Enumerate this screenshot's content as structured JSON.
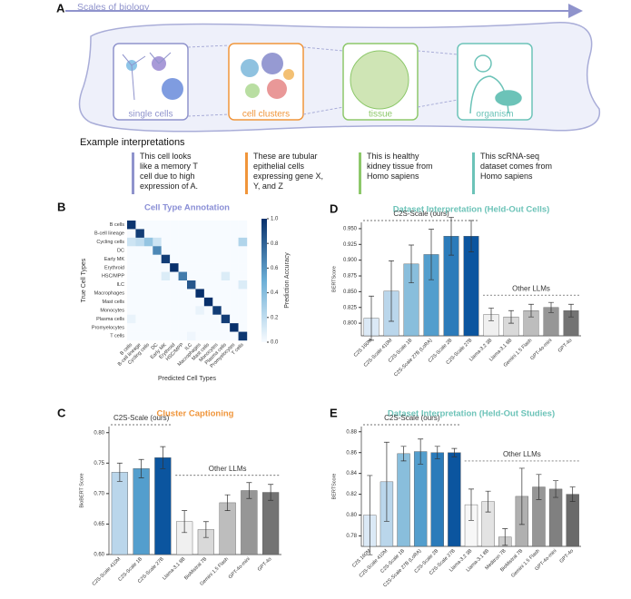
{
  "panel_a": {
    "letter": "A",
    "arrow_label": "Scales of biology",
    "scales": [
      "single cells",
      "cell clusters",
      "tissue",
      "organism"
    ],
    "examples_title": "Example interpretations",
    "examples": [
      "This cell looks like a memory T cell due to high expression of A.",
      "These are tubular epithelial cells expressing gene X, Y, and Z",
      "This is healthy kidney tissue from Homo sapiens",
      "This scRNA-seq dataset comes from Homo sapiens"
    ]
  },
  "chart_data": [
    {
      "type": "heatmap",
      "panel": "B",
      "title": "Cell Type Annotation",
      "title_color": "#8a8fd6",
      "categories": [
        "B cells",
        "B-cell lineage",
        "Cycling cells",
        "DC",
        "Early MK",
        "Erythroid",
        "HSC/MPP",
        "ILC",
        "Macrophages",
        "Mast cells",
        "Monocytes",
        "Plasma cells",
        "Promyelocytes",
        "T cells"
      ],
      "values": [
        [
          0.98,
          0,
          0,
          0,
          0,
          0,
          0,
          0,
          0,
          0,
          0,
          0,
          0,
          0
        ],
        [
          0,
          0.95,
          0,
          0,
          0,
          0,
          0,
          0,
          0,
          0,
          0,
          0,
          0,
          0
        ],
        [
          0.15,
          0.2,
          0.35,
          0.15,
          0,
          0,
          0,
          0,
          0,
          0,
          0,
          0,
          0,
          0.25
        ],
        [
          0,
          0,
          0,
          0.65,
          0,
          0,
          0,
          0,
          0,
          0,
          0,
          0,
          0,
          0
        ],
        [
          0,
          0,
          0,
          0,
          0.95,
          0,
          0,
          0,
          0,
          0,
          0,
          0,
          0,
          0
        ],
        [
          0,
          0,
          0,
          0,
          0,
          1.0,
          0,
          0,
          0,
          0,
          0,
          0,
          0,
          0
        ],
        [
          0,
          0,
          0,
          0,
          0.1,
          0,
          0.7,
          0,
          0,
          0,
          0,
          0.1,
          0,
          0
        ],
        [
          0,
          0,
          0,
          0,
          0,
          0,
          0,
          0.85,
          0,
          0,
          0,
          0,
          0,
          0.1
        ],
        [
          0,
          0,
          0,
          0,
          0,
          0,
          0,
          0,
          1.0,
          0,
          0,
          0,
          0,
          0
        ],
        [
          0,
          0,
          0,
          0,
          0,
          0,
          0,
          0,
          0,
          1.0,
          0,
          0,
          0,
          0
        ],
        [
          0,
          0,
          0,
          0,
          0,
          0,
          0,
          0,
          0.05,
          0,
          0.95,
          0,
          0,
          0
        ],
        [
          0.05,
          0,
          0,
          0,
          0,
          0,
          0,
          0,
          0,
          0,
          0,
          0.95,
          0,
          0
        ],
        [
          0,
          0,
          0,
          0,
          0,
          0,
          0,
          0,
          0,
          0,
          0,
          0,
          1.0,
          0
        ],
        [
          0,
          0,
          0,
          0,
          0,
          0,
          0,
          0.03,
          0,
          0,
          0,
          0,
          0,
          0.97
        ]
      ],
      "x_label": "Predicted Cell Types",
      "y_label": "True Cell Types",
      "colorbar_label": "Prediction Accuracy",
      "clim": [
        0,
        1
      ],
      "cticks": [
        {
          "value": 0,
          "label": "0.0"
        },
        0.2,
        0.4,
        0.6,
        0.8,
        {
          "value": 1,
          "label": "1.0"
        }
      ]
    },
    {
      "type": "bar",
      "panel": "D",
      "title": "Dataset Interpretation (Held-Out Cells)",
      "title_color": "#6cc3b8",
      "categories": [
        "C2S 160M",
        "C2S-Scale 410M",
        "C2S-Scale 1B",
        "C2S-Scale 27B (LoRA)",
        "C2S-Scale 2B",
        "C2S-Scale 27B",
        "Llama-3.2 3B",
        "Llama-3.1 8B",
        "Gemini 1.5 Flash",
        "GPT-4o-mini",
        "GPT-4o"
      ],
      "values": [
        0.808,
        0.851,
        0.894,
        0.909,
        0.938,
        0.938,
        0.814,
        0.81,
        0.82,
        0.825,
        0.82
      ],
      "errors": [
        0.035,
        0.048,
        0.03,
        0.04,
        0.03,
        0.025,
        0.01,
        0.01,
        0.01,
        0.008,
        0.01
      ],
      "colors": [
        "#dbe9f6",
        "#bad6eb",
        "#89bedc",
        "#539ecd",
        "#2b7bba",
        "#0b559f",
        "#f0f0f0",
        "#d9d9d9",
        "#bdbdbd",
        "#969696",
        "#737373"
      ],
      "groups": [
        "C2S-Scale (ours)",
        "Other LLMs"
      ],
      "y_label": "BERTScore",
      "ylim": [
        0.78,
        0.96
      ],
      "yticks": [
        {
          "value": 0.8,
          "label": "0.800"
        },
        0.825,
        {
          "value": 0.85,
          "label": "0.850"
        },
        0.875,
        {
          "value": 0.9,
          "label": "0.900"
        },
        0.925,
        {
          "value": 0.95,
          "label": "0.950"
        }
      ]
    },
    {
      "type": "bar",
      "panel": "C",
      "title": "Cluster Captioning",
      "title_color": "#f0953a",
      "categories": [
        "C2S-Scale 410M",
        "C2S-Scale 1B",
        "C2S-Scale 27B",
        "Llama-3.1 8B",
        "BioMistral 7B",
        "Gemini 1.5 Flash",
        "GPT-4o-mini",
        "GPT-4o"
      ],
      "values": [
        0.735,
        0.741,
        0.759,
        0.654,
        0.641,
        0.685,
        0.705,
        0.702
      ],
      "errors": [
        0.015,
        0.015,
        0.018,
        0.018,
        0.013,
        0.013,
        0.013,
        0.013
      ],
      "colors": [
        "#bad6eb",
        "#539ecd",
        "#0b559f",
        "#f0f0f0",
        "#d9d9d9",
        "#bdbdbd",
        "#969696",
        "#737373"
      ],
      "groups": [
        "C2S-Scale (ours)",
        "Other LLMs"
      ],
      "y_label": "BioBERT Score",
      "ylim": [
        0.6,
        0.81
      ],
      "yticks": [
        {
          "value": 0.6,
          "label": "0.60"
        },
        0.65,
        {
          "value": 0.7,
          "label": "0.70"
        },
        0.75,
        {
          "value": 0.8,
          "label": "0.80"
        }
      ]
    },
    {
      "type": "bar",
      "panel": "E",
      "title": "Dataset Interpretation (Held-Out Studies)",
      "title_color": "#6cc3b8",
      "categories": [
        "C2S 160M",
        "C2S-Scale 410M",
        "C2S-Scale 1B",
        "C2S-Scale 27B (LoRA)",
        "C2S-Scale 2B",
        "C2S-Scale 27B",
        "Llama-3.2 3B",
        "Llama-3.1 8B",
        "Meditron 7B",
        "BioMistral 7B",
        "Gemini 1.5 Flash",
        "GPT-4o-mini",
        "GPT-4o"
      ],
      "values": [
        0.8,
        0.832,
        0.859,
        0.861,
        0.86,
        0.86,
        0.81,
        0.813,
        0.779,
        0.818,
        0.827,
        0.825,
        0.82
      ],
      "errors": [
        0.038,
        0.038,
        0.007,
        0.012,
        0.006,
        0.004,
        0.015,
        0.01,
        0.008,
        0.027,
        0.012,
        0.008,
        0.007
      ],
      "colors": [
        "#dbe9f6",
        "#bad6eb",
        "#89bedc",
        "#539ecd",
        "#2b7bba",
        "#0b559f",
        "#f7f7f7",
        "#e3e3e3",
        "#cccccc",
        "#b0b0b0",
        "#969696",
        "#808080",
        "#6a6a6a"
      ],
      "groups": [
        "C2S-Scale (ours)",
        "Other LLMs"
      ],
      "y_label": "BERTScore",
      "ylim": [
        0.77,
        0.885
      ],
      "yticks": [
        0.78,
        {
          "value": 0.8,
          "label": "0.80"
        },
        0.82,
        0.84,
        0.86,
        0.88
      ]
    }
  ]
}
